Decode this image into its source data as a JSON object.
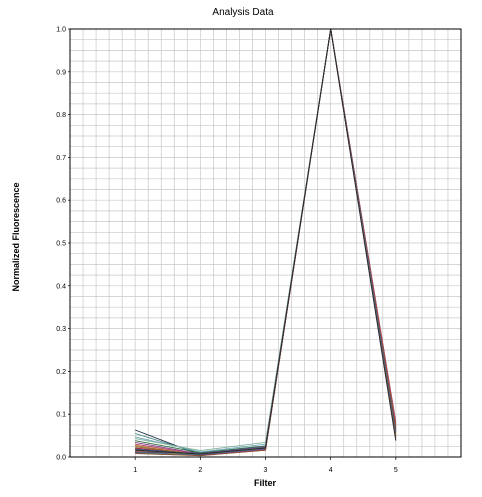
{
  "chart_data": {
    "type": "line",
    "title": "Analysis Data",
    "xlabel": "Filter",
    "ylabel": "Normalized Fluorescence",
    "x": [
      1,
      2,
      3,
      4,
      5
    ],
    "xlim": [
      0,
      6
    ],
    "ylim": [
      0,
      1
    ],
    "x_ticks": [
      "1",
      "2",
      "3",
      "4",
      "5"
    ],
    "y_ticks": [
      "0.0",
      "0.1",
      "0.2",
      "0.3",
      "0.4",
      "0.5",
      "0.6",
      "0.7",
      "0.8",
      "0.9",
      "1.0"
    ],
    "grid": true,
    "legend": "none",
    "series": [
      {
        "color": "#1a2a40",
        "values": [
          0.063,
          0.005,
          0.02,
          1.0,
          0.075
        ]
      },
      {
        "color": "#3f7f7f",
        "values": [
          0.055,
          0.008,
          0.022,
          1.0,
          0.07
        ]
      },
      {
        "color": "#6fa8b8",
        "values": [
          0.047,
          0.012,
          0.03,
          1.0,
          0.068
        ]
      },
      {
        "color": "#7fb0a0",
        "values": [
          0.043,
          0.015,
          0.034,
          1.0,
          0.065
        ]
      },
      {
        "color": "#2f6f3f",
        "values": [
          0.038,
          0.01,
          0.026,
          1.0,
          0.06
        ]
      },
      {
        "color": "#8a3a8a",
        "values": [
          0.034,
          0.007,
          0.024,
          1.0,
          0.082
        ]
      },
      {
        "color": "#b04060",
        "values": [
          0.03,
          0.006,
          0.022,
          1.0,
          0.078
        ]
      },
      {
        "color": "#c07030",
        "values": [
          0.027,
          0.004,
          0.02,
          1.0,
          0.072
        ]
      },
      {
        "color": "#806020",
        "values": [
          0.024,
          0.005,
          0.019,
          1.0,
          0.066
        ]
      },
      {
        "color": "#b02020",
        "values": [
          0.021,
          0.004,
          0.018,
          1.0,
          0.064
        ]
      },
      {
        "color": "#3050a0",
        "values": [
          0.019,
          0.006,
          0.021,
          1.0,
          0.058
        ]
      },
      {
        "color": "#505050",
        "values": [
          0.017,
          0.005,
          0.019,
          1.0,
          0.062
        ]
      },
      {
        "color": "#d08030",
        "values": [
          0.015,
          0.004,
          0.018,
          1.0,
          0.055
        ]
      },
      {
        "color": "#a03030",
        "values": [
          0.013,
          0.003,
          0.017,
          1.0,
          0.05
        ]
      },
      {
        "color": "#602020",
        "values": [
          0.011,
          0.004,
          0.016,
          1.0,
          0.045
        ]
      },
      {
        "color": "#7a4aa0",
        "values": [
          0.01,
          0.005,
          0.018,
          1.0,
          0.04
        ]
      },
      {
        "color": "#408080",
        "values": [
          0.009,
          0.006,
          0.02,
          1.0,
          0.052
        ]
      },
      {
        "color": "#905030",
        "values": [
          0.008,
          0.003,
          0.016,
          1.0,
          0.048
        ]
      },
      {
        "color": "#506080",
        "values": [
          0.012,
          0.009,
          0.024,
          1.0,
          0.057
        ]
      },
      {
        "color": "#2a2a2a",
        "values": [
          0.016,
          0.007,
          0.021,
          1.0,
          0.038
        ]
      }
    ]
  }
}
